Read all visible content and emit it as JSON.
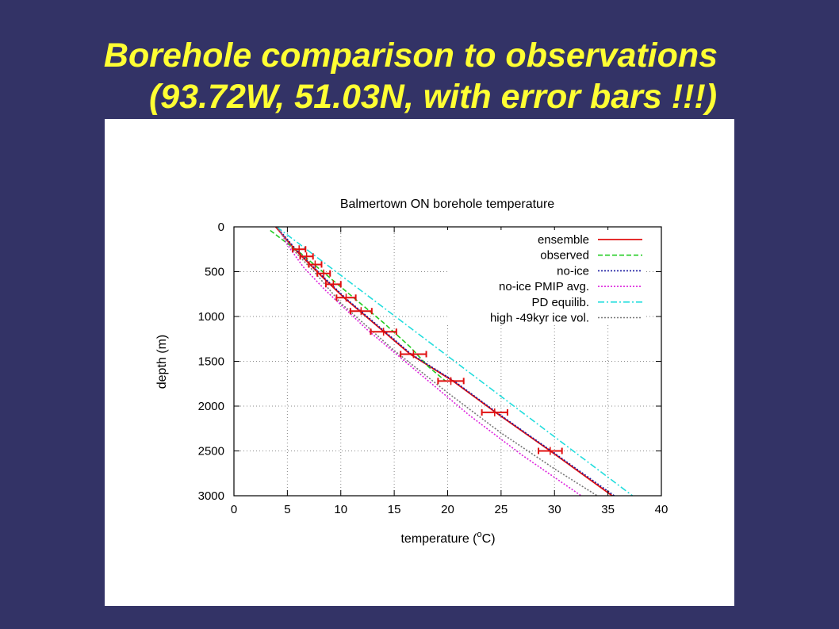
{
  "slide": {
    "title_line1": "Borehole comparison to observations",
    "title_line2": "(93.72W, 51.03N, with error bars !!!)"
  },
  "chart_data": {
    "type": "line",
    "title": "Balmertown ON borehole temperature",
    "xlabel_prefix": "temperature (",
    "xlabel_sup": "o",
    "xlabel_suffix": "C)",
    "ylabel": "depth (m)",
    "xlim": [
      0,
      40
    ],
    "ylim": [
      3000,
      0
    ],
    "y_inverted": true,
    "xticks": [
      0,
      5,
      10,
      15,
      20,
      25,
      30,
      35,
      40
    ],
    "yticks": [
      0,
      500,
      1000,
      1500,
      2000,
      2500,
      3000
    ],
    "grid": true,
    "legend_position": "top-right",
    "series": [
      {
        "name": "ensemble",
        "color": "#e01010",
        "dash": "solid",
        "points": [
          [
            3.9,
            0
          ],
          [
            5.7,
            250
          ],
          [
            8.2,
            550
          ],
          [
            10.4,
            800
          ],
          [
            16.5,
            1420
          ],
          [
            20.5,
            1720
          ],
          [
            24.6,
            2080
          ],
          [
            29.6,
            2500
          ],
          [
            35.4,
            3000
          ]
        ]
      },
      {
        "name": "observed",
        "color": "#22cc22",
        "dash": "dashed",
        "points": [
          [
            3.4,
            40
          ],
          [
            4.6,
            150
          ],
          [
            6.3,
            300
          ],
          [
            8,
            470
          ],
          [
            10.5,
            720
          ],
          [
            14,
            1070
          ],
          [
            16.5,
            1340
          ],
          [
            18.2,
            1560
          ],
          [
            19.8,
            1720
          ]
        ]
      },
      {
        "name": "no-ice",
        "color": "#1a1aa0",
        "dash": "dotted",
        "points": [
          [
            4,
            0
          ],
          [
            5.8,
            250
          ],
          [
            8.3,
            550
          ],
          [
            10.5,
            800
          ],
          [
            16.6,
            1420
          ],
          [
            20.6,
            1720
          ],
          [
            24.7,
            2080
          ],
          [
            29.7,
            2500
          ],
          [
            35.6,
            3000
          ]
        ]
      },
      {
        "name": "no-ice PMIP avg.",
        "color": "#dd22dd",
        "dash": "dotted",
        "points": [
          [
            4.1,
            0
          ],
          [
            5,
            200
          ],
          [
            6.5,
            450
          ],
          [
            8.5,
            700
          ],
          [
            12.5,
            1150
          ],
          [
            17,
            1600
          ],
          [
            22,
            2100
          ],
          [
            27,
            2550
          ],
          [
            32.5,
            3000
          ]
        ]
      },
      {
        "name": "PD equilib.",
        "color": "#22dddd",
        "dash": "dashdot",
        "points": [
          [
            4,
            0
          ],
          [
            37.3,
            3000
          ]
        ]
      },
      {
        "name": "high -49kyr ice vol.",
        "color": "#777777",
        "dash": "dotted",
        "points": [
          [
            4,
            0
          ],
          [
            5.5,
            250
          ],
          [
            7.5,
            500
          ],
          [
            10,
            850
          ],
          [
            15,
            1380
          ],
          [
            20,
            1850
          ],
          [
            25,
            2300
          ],
          [
            30,
            2700
          ],
          [
            34,
            3000
          ]
        ]
      }
    ],
    "error_bars": [
      {
        "depth": 250,
        "temp": 6.1,
        "xerr_minus": 0.6,
        "xerr_plus": 0.6
      },
      {
        "depth": 330,
        "temp": 6.8,
        "xerr_minus": 0.6,
        "xerr_plus": 0.6
      },
      {
        "depth": 420,
        "temp": 7.6,
        "xerr_minus": 0.6,
        "xerr_plus": 0.6
      },
      {
        "depth": 520,
        "temp": 8.4,
        "xerr_minus": 0.6,
        "xerr_plus": 0.6
      },
      {
        "depth": 640,
        "temp": 9.3,
        "xerr_minus": 0.7,
        "xerr_plus": 0.7
      },
      {
        "depth": 790,
        "temp": 10.5,
        "xerr_minus": 0.9,
        "xerr_plus": 0.9
      },
      {
        "depth": 940,
        "temp": 11.9,
        "xerr_minus": 1.0,
        "xerr_plus": 1.0
      },
      {
        "depth": 1170,
        "temp": 14.0,
        "xerr_minus": 1.2,
        "xerr_plus": 1.2
      },
      {
        "depth": 1420,
        "temp": 16.8,
        "xerr_minus": 1.2,
        "xerr_plus": 1.2
      },
      {
        "depth": 1720,
        "temp": 20.3,
        "xerr_minus": 1.2,
        "xerr_plus": 1.2
      },
      {
        "depth": 2070,
        "temp": 24.4,
        "xerr_minus": 1.2,
        "xerr_plus": 1.2
      },
      {
        "depth": 2500,
        "temp": 29.6,
        "xerr_minus": 1.1,
        "xerr_plus": 1.1
      }
    ]
  }
}
